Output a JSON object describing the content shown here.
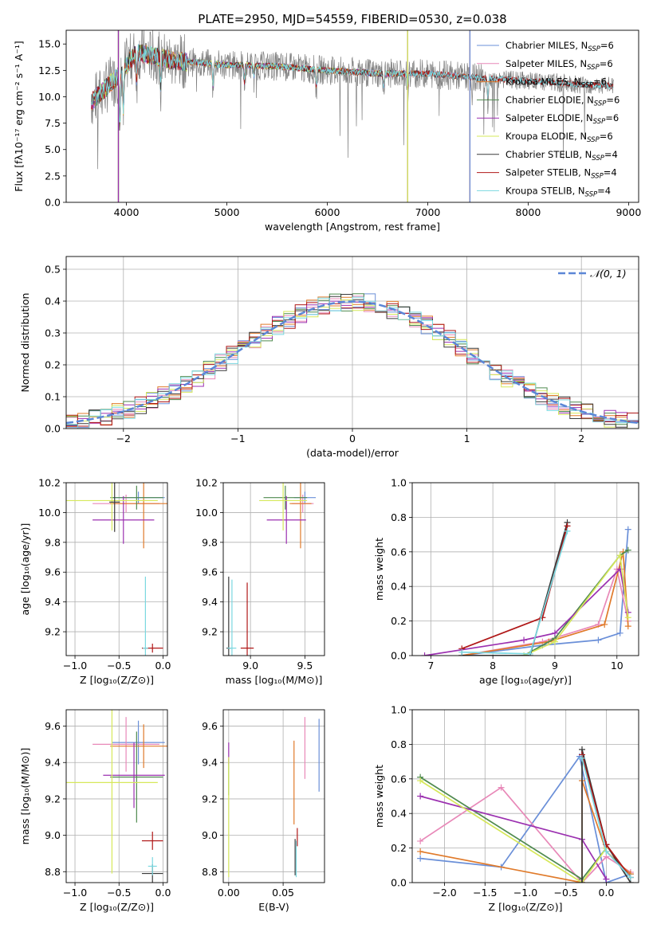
{
  "figure": {
    "title": "PLATE=2950, MJD=54559, FIBERID=0530, z=0.038"
  },
  "models": [
    {
      "name": "Chabrier MILES",
      "nssp": "6",
      "color": "#6a8fd8"
    },
    {
      "name": "Salpeter MILES",
      "nssp": "6",
      "color": "#e888b8"
    },
    {
      "name": "Kroupa MILES",
      "nssp": "6",
      "color": "#e07a2a"
    },
    {
      "name": "Chabrier ELODIE",
      "nssp": "6",
      "color": "#4f8a4f"
    },
    {
      "name": "Salpeter ELODIE",
      "nssp": "6",
      "color": "#9b30b0"
    },
    {
      "name": "Kroupa ELODIE",
      "nssp": "6",
      "color": "#d6e85a"
    },
    {
      "name": "Chabrier STELIB",
      "nssp": "4",
      "color": "#3a3a3a"
    },
    {
      "name": "Salpeter STELIB",
      "nssp": "4",
      "color": "#b01818"
    },
    {
      "name": "Kroupa STELIB",
      "nssp": "4",
      "color": "#7ad8e0"
    }
  ],
  "chart_data": [
    {
      "id": "spectrum",
      "type": "line",
      "xlabel": "wavelength [Angstrom, rest frame]",
      "ylabel": "Flux [fλ10⁻¹⁷ erg cm⁻² s⁻¹ A⁻¹]",
      "xlim": [
        3400,
        9100
      ],
      "ylim": [
        0,
        16.3
      ],
      "xticks": [
        4000,
        5000,
        6000,
        7000,
        8000,
        9000
      ],
      "yticks": [
        0.0,
        2.5,
        5.0,
        7.5,
        10.0,
        12.5,
        15.0
      ],
      "data_color": "#808080",
      "data_range": [
        3650,
        8850
      ],
      "continuum": [
        [
          3650,
          9.5
        ],
        [
          3900,
          11.8
        ],
        [
          4000,
          13.0
        ],
        [
          4100,
          14.2
        ],
        [
          4500,
          13.4
        ],
        [
          5000,
          13.0
        ],
        [
          5500,
          12.9
        ],
        [
          6000,
          12.5
        ],
        [
          6500,
          12.2
        ],
        [
          7000,
          12.2
        ],
        [
          7500,
          11.8
        ],
        [
          8000,
          11.5
        ],
        [
          8500,
          11.2
        ],
        [
          8850,
          11.0
        ]
      ],
      "model_drops": [
        {
          "model": "Kroupa ELODIE",
          "x": 3920
        },
        {
          "model": "Chabrier ELODIE",
          "x": 3920
        },
        {
          "model": "Salpeter ELODIE",
          "x": 3920
        },
        {
          "model": "Chabrier ELODIE",
          "x": 6800
        },
        {
          "model": "Salpeter ELODIE",
          "x": 6800
        },
        {
          "model": "Kroupa ELODIE",
          "x": 6800
        },
        {
          "model": "Salpeter MILES",
          "x": 7420
        },
        {
          "model": "Kroupa MILES",
          "x": 7420
        },
        {
          "model": "Chabrier MILES",
          "x": 7420
        }
      ]
    },
    {
      "id": "residuals",
      "type": "histogram",
      "xlabel": "(data-model)/error",
      "ylabel": "Normed distribution",
      "xlim": [
        -2.5,
        2.5
      ],
      "ylim": [
        0,
        0.54
      ],
      "xticks": [
        -2,
        -1,
        0,
        1,
        2
      ],
      "yticks": [
        0.0,
        0.1,
        0.2,
        0.3,
        0.4,
        0.5
      ],
      "bin_width": 0.1,
      "legend": "𝒩(0, 1)",
      "gauss_color": "#5b86d6"
    },
    {
      "id": "age_vs_Z",
      "type": "errorbar",
      "xlabel": "Z [log₁₀(Z/Z⊙)]",
      "ylabel": "age  [log₁₀(age/yr)]",
      "xlim": [
        -1.1,
        0.05
      ],
      "ylim": [
        9.04,
        10.2
      ],
      "xticks": [
        -1.0,
        -0.5,
        0.0
      ],
      "yticks": [
        9.2,
        9.4,
        9.6,
        9.8,
        10.0,
        10.2
      ],
      "points": [
        {
          "model": "Chabrier MILES",
          "x": -0.28,
          "xerr": 0.3,
          "y": 10.1,
          "yerr": 0.04
        },
        {
          "model": "Salpeter MILES",
          "x": -0.42,
          "xerr": 0.38,
          "y": 10.06,
          "yerr": 0.06
        },
        {
          "model": "Kroupa MILES",
          "x": -0.22,
          "xerr": 0.38,
          "y": 10.06,
          "yerr": 0.3
        },
        {
          "model": "Chabrier ELODIE",
          "x": -0.3,
          "xerr": 0.3,
          "y": 10.1,
          "yerr": 0.08
        },
        {
          "model": "Salpeter ELODIE",
          "x": -0.45,
          "xerr": 0.35,
          "y": 9.95,
          "yerr": 0.16
        },
        {
          "model": "Kroupa ELODIE",
          "x": -0.58,
          "xerr": 0.52,
          "y": 10.08,
          "yerr": 0.2
        },
        {
          "model": "Chabrier STELIB",
          "x": -0.55,
          "xerr": 0.06,
          "y": 10.07,
          "yerr": 0.2
        },
        {
          "model": "Salpeter STELIB",
          "x": -0.12,
          "xerr": 0.12,
          "y": 9.09,
          "yerr": 0.03
        },
        {
          "model": "Kroupa STELIB",
          "x": -0.2,
          "xerr": 0.03,
          "y": 9.09,
          "yerr": 0.48
        }
      ]
    },
    {
      "id": "age_vs_mass",
      "type": "errorbar",
      "xlabel": "mass [log₁₀(M/M⊙)]",
      "ylabel": "",
      "xlim": [
        8.75,
        9.68
      ],
      "ylim": [
        9.04,
        10.2
      ],
      "xticks": [
        9.0,
        9.5
      ],
      "yticks": [
        9.2,
        9.4,
        9.6,
        9.8,
        10.0,
        10.2
      ],
      "points": [
        {
          "model": "Chabrier MILES",
          "x": 9.5,
          "xerr": 0.1,
          "y": 10.1,
          "yerr": 0.04
        },
        {
          "model": "Salpeter MILES",
          "x": 9.48,
          "xerr": 0.1,
          "y": 10.06,
          "yerr": 0.06
        },
        {
          "model": "Kroupa MILES",
          "x": 9.46,
          "xerr": 0.1,
          "y": 10.06,
          "yerr": 0.3
        },
        {
          "model": "Chabrier ELODIE",
          "x": 9.32,
          "xerr": 0.2,
          "y": 10.1,
          "yerr": 0.08
        },
        {
          "model": "Salpeter ELODIE",
          "x": 9.33,
          "xerr": 0.18,
          "y": 9.95,
          "yerr": 0.16
        },
        {
          "model": "Kroupa ELODIE",
          "x": 9.3,
          "xerr": 0.22,
          "y": 10.08,
          "yerr": 0.2
        },
        {
          "model": "Chabrier STELIB",
          "x": 8.8,
          "xerr": 0.02,
          "y": 9.09,
          "yerr": 0.48
        },
        {
          "model": "Salpeter STELIB",
          "x": 8.97,
          "xerr": 0.06,
          "y": 9.09,
          "yerr": 0.44
        },
        {
          "model": "Kroupa STELIB",
          "x": 8.83,
          "xerr": 0.04,
          "y": 9.09,
          "yerr": 0.46
        }
      ]
    },
    {
      "id": "weight_vs_age",
      "type": "line",
      "xlabel": "age  [log₁₀(age/yr)]",
      "ylabel": "mass weight",
      "xlim": [
        6.7,
        10.35
      ],
      "ylim": [
        0,
        1
      ],
      "xticks": [
        7,
        8,
        9,
        10
      ],
      "yticks": [
        0.0,
        0.2,
        0.4,
        0.6,
        0.8,
        1.0
      ],
      "series": [
        {
          "model": "Chabrier MILES",
          "x": [
            7.5,
            8.8,
            9.7,
            10.05,
            10.18
          ],
          "y": [
            0.0,
            0.06,
            0.09,
            0.13,
            0.73
          ]
        },
        {
          "model": "Salpeter MILES",
          "x": [
            7.5,
            8.8,
            9.7,
            10.0,
            10.18
          ],
          "y": [
            0.0,
            0.08,
            0.18,
            0.5,
            0.2
          ]
        },
        {
          "model": "Kroupa MILES",
          "x": [
            7.5,
            8.9,
            9.8,
            10.1,
            10.18
          ],
          "y": [
            0.0,
            0.08,
            0.18,
            0.6,
            0.17
          ]
        },
        {
          "model": "Chabrier ELODIE",
          "x": [
            8.5,
            9.0,
            10.05,
            10.18
          ],
          "y": [
            0.0,
            0.1,
            0.58,
            0.61
          ]
        },
        {
          "model": "Salpeter ELODIE",
          "x": [
            6.9,
            8.5,
            9.0,
            10.05,
            10.18
          ],
          "y": [
            0.0,
            0.09,
            0.13,
            0.5,
            0.25
          ]
        },
        {
          "model": "Kroupa ELODIE",
          "x": [
            8.5,
            9.0,
            10.05,
            10.18
          ],
          "y": [
            0.0,
            0.08,
            0.58,
            0.22
          ]
        },
        {
          "model": "Chabrier STELIB",
          "x": [
            7.5,
            8.6,
            9.2
          ],
          "y": [
            0.0,
            0.0,
            0.77
          ]
        },
        {
          "model": "Salpeter STELIB",
          "x": [
            7.5,
            8.8,
            9.2
          ],
          "y": [
            0.04,
            0.22,
            0.75
          ]
        },
        {
          "model": "Kroupa STELIB",
          "x": [
            7.5,
            8.6,
            9.2
          ],
          "y": [
            0.02,
            0.01,
            0.72
          ]
        }
      ]
    },
    {
      "id": "mass_vs_Z",
      "type": "errorbar",
      "xlabel": "Z [log₁₀(Z/Z⊙)]",
      "ylabel": "mass [log₁₀(M/M⊙)]",
      "xlim": [
        -1.1,
        0.05
      ],
      "ylim": [
        8.74,
        9.69
      ],
      "xticks": [
        -1.0,
        -0.5,
        0.0
      ],
      "yticks": [
        8.8,
        9.0,
        9.2,
        9.4,
        9.6
      ],
      "points": [
        {
          "model": "Chabrier MILES",
          "x": -0.28,
          "xerr": 0.3,
          "y": 9.51,
          "yerr": 0.12
        },
        {
          "model": "Salpeter MILES",
          "x": -0.42,
          "xerr": 0.38,
          "y": 9.5,
          "yerr": 0.15
        },
        {
          "model": "Kroupa MILES",
          "x": -0.22,
          "xerr": 0.38,
          "y": 9.49,
          "yerr": 0.12
        },
        {
          "model": "Chabrier ELODIE",
          "x": -0.3,
          "xerr": 0.3,
          "y": 9.32,
          "yerr": 0.25
        },
        {
          "model": "Salpeter ELODIE",
          "x": -0.33,
          "xerr": 0.35,
          "y": 9.33,
          "yerr": 0.18
        },
        {
          "model": "Kroupa ELODIE",
          "x": -0.58,
          "xerr": 0.52,
          "y": 9.29,
          "yerr": 0.5
        },
        {
          "model": "Chabrier STELIB",
          "x": -0.12,
          "xerr": 0.12,
          "y": 8.79,
          "yerr": 0.05
        },
        {
          "model": "Salpeter STELIB",
          "x": -0.12,
          "xerr": 0.12,
          "y": 8.97,
          "yerr": 0.05
        },
        {
          "model": "Kroupa STELIB",
          "x": -0.12,
          "xerr": 0.05,
          "y": 8.83,
          "yerr": 0.05
        }
      ]
    },
    {
      "id": "mass_vs_ebv",
      "type": "errorbar",
      "xlabel": "E(B-V)",
      "ylabel": "",
      "xlim": [
        -0.005,
        0.088
      ],
      "ylim": [
        8.74,
        9.69
      ],
      "xticks": [
        0.0,
        0.05
      ],
      "yticks": [
        8.8,
        9.0,
        9.2,
        9.4,
        9.6
      ],
      "points": [
        {
          "model": "Chabrier MILES",
          "x": 0.083,
          "xerr": 0.0,
          "y": 9.44,
          "yerr": 0.2
        },
        {
          "model": "Salpeter MILES",
          "x": 0.07,
          "xerr": 0.0,
          "y": 9.48,
          "yerr": 0.17
        },
        {
          "model": "Kroupa MILES",
          "x": 0.06,
          "xerr": 0.0,
          "y": 9.29,
          "yerr": 0.23
        },
        {
          "model": "Chabrier ELODIE",
          "x": 0.0,
          "xerr": 0.0,
          "y": 9.32,
          "yerr": 0.1
        },
        {
          "model": "Salpeter ELODIE",
          "x": 0.0,
          "xerr": 0.0,
          "y": 9.45,
          "yerr": 0.06
        },
        {
          "model": "Kroupa ELODIE",
          "x": 0.0,
          "xerr": 0.0,
          "y": 9.1,
          "yerr": 0.33
        },
        {
          "model": "Chabrier STELIB",
          "x": 0.061,
          "xerr": 0.0,
          "y": 8.88,
          "yerr": 0.1
        },
        {
          "model": "Salpeter STELIB",
          "x": 0.063,
          "xerr": 0.0,
          "y": 8.99,
          "yerr": 0.05
        },
        {
          "model": "Kroupa STELIB",
          "x": 0.062,
          "xerr": 0.0,
          "y": 8.87,
          "yerr": 0.1
        }
      ]
    },
    {
      "id": "weight_vs_Z",
      "type": "line",
      "xlabel": "Z [log₁₀(Z/Z⊙)]",
      "ylabel": "mass weight",
      "xlim": [
        -2.4,
        0.4
      ],
      "ylim": [
        0,
        1
      ],
      "xticks": [
        -2.0,
        -1.5,
        -1.0,
        -0.5,
        0.0
      ],
      "yticks": [
        0.0,
        0.2,
        0.4,
        0.6,
        0.8,
        1.0
      ],
      "series": [
        {
          "model": "Chabrier MILES",
          "x": [
            -2.3,
            -1.3,
            -0.33,
            0.0,
            0.3
          ],
          "y": [
            0.14,
            0.09,
            0.73,
            0.0,
            0.05
          ]
        },
        {
          "model": "Salpeter MILES",
          "x": [
            -2.3,
            -1.3,
            -0.3,
            0.0,
            0.3
          ],
          "y": [
            0.24,
            0.55,
            0.0,
            0.15,
            0.06
          ]
        },
        {
          "model": "Kroupa MILES",
          "x": [
            -2.3,
            -0.3,
            -0.3,
            0.0,
            0.3
          ],
          "y": [
            0.18,
            0.0,
            0.59,
            0.18,
            0.05
          ]
        },
        {
          "model": "Chabrier ELODIE",
          "x": [
            -2.3,
            -0.3,
            0.0
          ],
          "y": [
            0.61,
            0.02,
            0.2
          ]
        },
        {
          "model": "Salpeter ELODIE",
          "x": [
            -2.3,
            -0.3,
            0.0
          ],
          "y": [
            0.5,
            0.25,
            0.02
          ]
        },
        {
          "model": "Kroupa ELODIE",
          "x": [
            -2.3,
            -0.3,
            0.0
          ],
          "y": [
            0.59,
            0.0,
            0.2
          ]
        },
        {
          "model": "Chabrier STELIB",
          "x": [
            -0.3,
            -0.3,
            0.0,
            0.3
          ],
          "y": [
            0.0,
            0.77,
            0.22,
            0.0
          ]
        },
        {
          "model": "Salpeter STELIB",
          "x": [
            -0.3,
            0.0,
            0.3
          ],
          "y": [
            0.74,
            0.22,
            0.03
          ]
        },
        {
          "model": "Kroupa STELIB",
          "x": [
            -0.3,
            0.0,
            0.3
          ],
          "y": [
            0.72,
            0.18,
            0.03
          ]
        }
      ]
    }
  ]
}
